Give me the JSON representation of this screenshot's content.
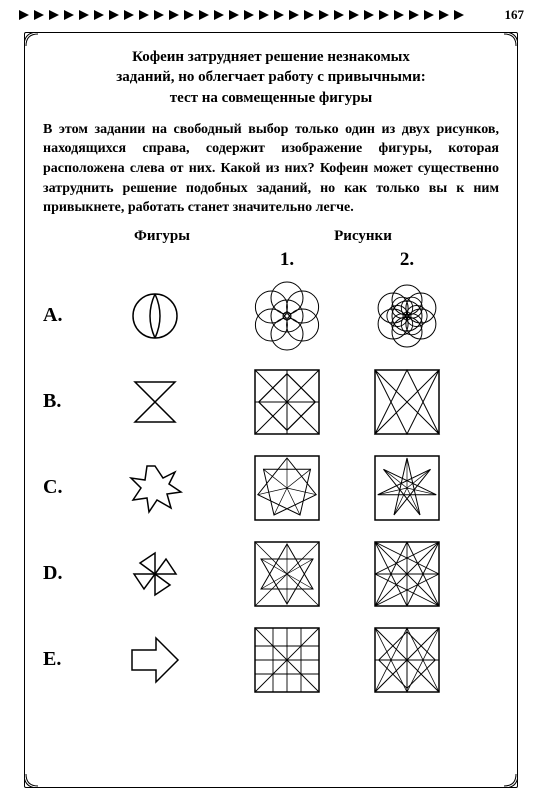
{
  "page_number": "167",
  "title_l1": "Кофеин затрудняет решение незнакомых",
  "title_l2": "заданий, но облегчает работу с привычными:",
  "title_l3": "тест на совмещенные фигуры",
  "intro_part1": "В этом задании на свободный выбор только один из двух рисунков, находящихся справа, содержит изображение фигуры, которая расположена слева от них. Какой из них? ",
  "intro_bold": "Кофеин может существенно затруднить решение подобных заданий, но как только вы к ним привыкнете, работать станет значительно легче.",
  "head_figures": "Фигуры",
  "head_drawings": "Рисунки",
  "num1": "1.",
  "num2": "2.",
  "rows": {
    "a": "A.",
    "b": "B.",
    "c": "C.",
    "d": "D.",
    "e": "E."
  },
  "colors": {
    "stroke": "#000000",
    "bg": "#ffffff"
  },
  "arrow_count": 30
}
